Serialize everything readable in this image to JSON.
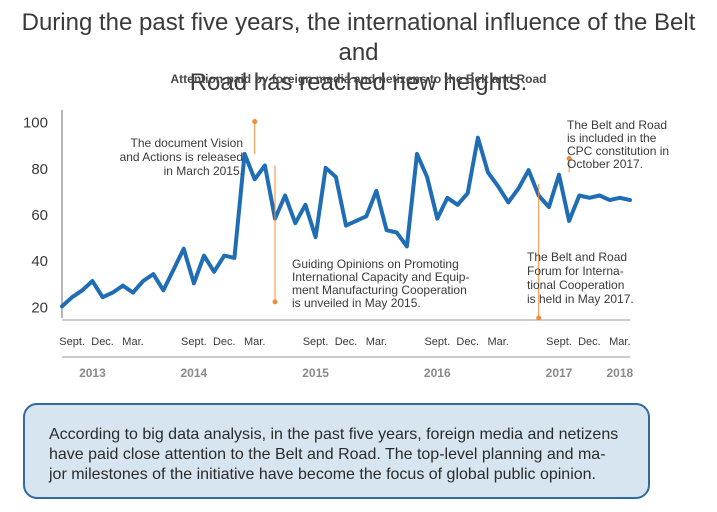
{
  "title_lines": [
    "During the past five years, the international influence of the Belt and",
    "Road has reached new heights."
  ],
  "subtitle": "Attention paid by foreign media and netizens to the Belt and Road",
  "chart_data": {
    "type": "line",
    "title": "Attention paid by foreign media and netizens to the Belt and Road",
    "xlabel": "",
    "ylabel": "",
    "ylim": [
      15,
      105
    ],
    "yticks": [
      20,
      40,
      60,
      80,
      100
    ],
    "grid": false,
    "x_tick_labels": [
      "Sept.",
      "Dec.",
      "Mar.",
      "Sept.",
      "Dec.",
      "Mar.",
      "Sept.",
      "Dec.",
      "Mar.",
      "Sept.",
      "Dec.",
      "Mar.",
      "Sept.",
      "Dec.",
      "Mar."
    ],
    "x_tick_positions": [
      8,
      11,
      14,
      20,
      23,
      26,
      32,
      35,
      38,
      44,
      47,
      50,
      56,
      59,
      62
    ],
    "x_range": [
      7,
      63
    ],
    "year_labels": [
      {
        "label": "2013",
        "month_index": 10
      },
      {
        "label": "2014",
        "month_index": 20
      },
      {
        "label": "2015",
        "month_index": 32
      },
      {
        "label": "2016",
        "month_index": 44
      },
      {
        "label": "2017",
        "month_index": 56
      },
      {
        "label": "2018",
        "month_index": 62
      }
    ],
    "series": [
      {
        "month_index": [
          7,
          8,
          9,
          10,
          11,
          12,
          13,
          14,
          15,
          16,
          17,
          18,
          19,
          20,
          21,
          22,
          23,
          24,
          25,
          26,
          27,
          28,
          29,
          30,
          31,
          32,
          33,
          34,
          35,
          36,
          37,
          38,
          39,
          40,
          41,
          42,
          43,
          44,
          45,
          46,
          47,
          48,
          49,
          50,
          51,
          52,
          53,
          54,
          55,
          56,
          57,
          58,
          59,
          60,
          61,
          62,
          63
        ],
        "values": [
          20,
          24,
          27,
          31,
          24,
          26,
          29,
          26,
          31,
          34,
          27,
          36,
          45,
          30,
          42,
          35,
          42,
          41,
          86,
          75,
          81,
          58,
          68,
          56,
          64,
          50,
          80,
          76,
          55,
          57,
          59,
          70,
          53,
          52,
          46,
          86,
          76,
          58,
          67,
          64,
          69,
          93,
          78,
          72,
          65,
          71,
          79,
          68,
          63,
          77,
          57,
          68,
          67,
          68,
          66,
          67,
          66
        ],
        "color": "#1f6db5"
      }
    ],
    "annotations": [
      {
        "lines": [
          "The document Vision",
          "and Actions is released",
          "in March 2015."
        ],
        "month_index": 26,
        "value": 100,
        "color": "#f08a3c"
      },
      {
        "lines": [
          "Guiding Opinions on Promoting",
          "International Capacity and Equip-",
          "ment Manufacturing Cooperation",
          "is unveiled in May 2015."
        ],
        "month_index": 28,
        "value": 22,
        "color": "#f08a3c"
      },
      {
        "lines": [
          "The Belt and Road",
          "is included in the",
          "CPC constitution in",
          "October 2017."
        ],
        "month_index": 57,
        "value": 93,
        "color": "#f08a3c"
      },
      {
        "lines": [
          "The Belt and Road",
          "Forum for Interna-",
          "tional Cooperation",
          "is held in May 2017."
        ],
        "month_index": 54,
        "value": 15,
        "color": "#f08a3c"
      }
    ]
  },
  "note_lines": [
    "According to big data analysis, in the past five years, foreign media and netizens",
    "have paid close attention to the Belt and Road. The top-level planning and ma-",
    "jor milestones of the initiative have become the focus of global public opinion."
  ],
  "colors": {
    "line": "#1f6db5",
    "annotation": "#f08a3c",
    "axis": "#6d6d6d",
    "note_border": "#2f6aa3",
    "note_fill": "#d6e5ef"
  }
}
